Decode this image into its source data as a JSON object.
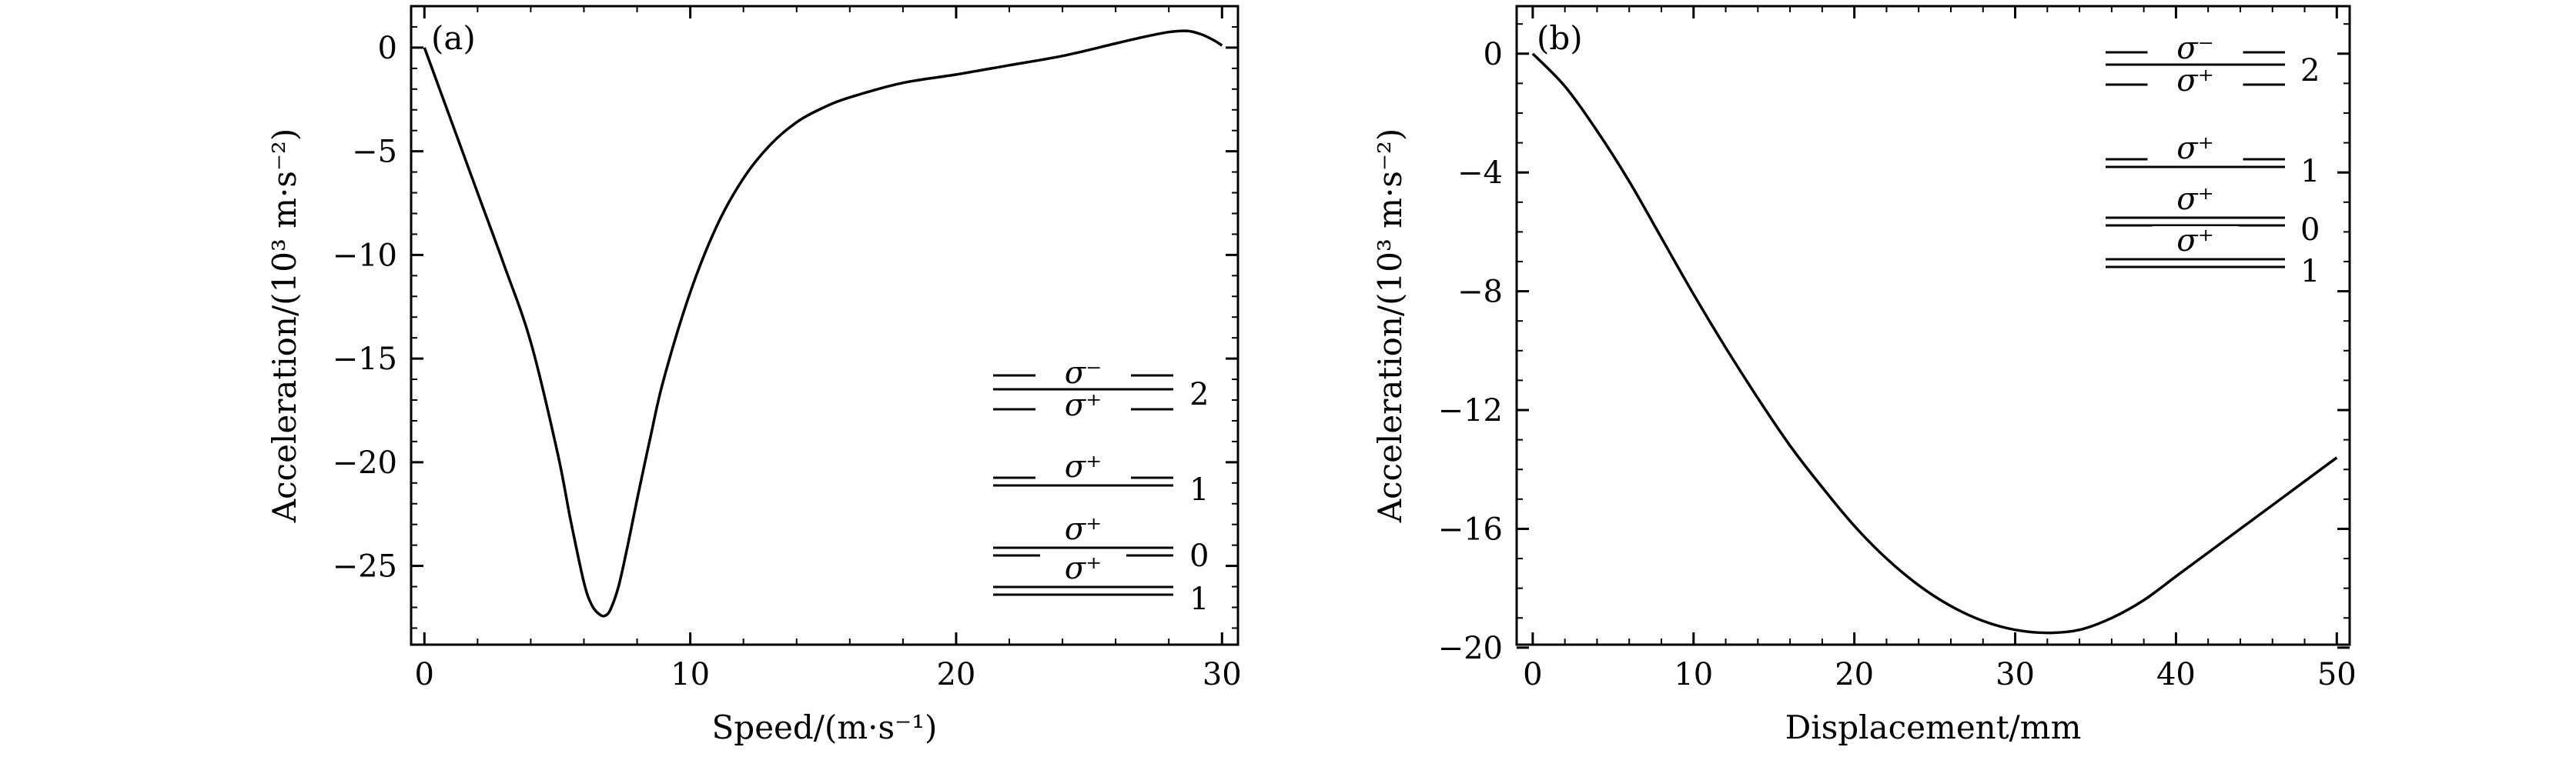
{
  "chart_data": [
    {
      "type": "line",
      "panel_label": "(a)",
      "xlabel": "Speed/(m·s⁻¹)",
      "ylabel": "Acceleration/(10³ m·s⁻²)",
      "xlim": [
        -0.5,
        30.6
      ],
      "ylim": [
        -28.8,
        2.0
      ],
      "x_ticks": [
        0,
        10,
        20,
        30
      ],
      "x_tick_labels": [
        "0",
        "10",
        "20",
        "30"
      ],
      "y_ticks": [
        0,
        -5,
        -10,
        -15,
        -20,
        -25
      ],
      "y_tick_labels": [
        "0",
        "−5",
        "−10",
        "−15",
        "−20",
        "−25"
      ],
      "grid": false,
      "legend_position": "lower-right",
      "series": [
        {
          "x": [
            0,
            1,
            2,
            3,
            4,
            5,
            5.5,
            6,
            6.3,
            6.6,
            6.8,
            7.0,
            7.3,
            7.6,
            8,
            8.5,
            9,
            10,
            11,
            12,
            13,
            14,
            15,
            16,
            18,
            20,
            22,
            24,
            26,
            27,
            28,
            28.7,
            29.2,
            29.7,
            30.0
          ],
          "y": [
            0,
            -3.5,
            -7.0,
            -10.5,
            -14.2,
            -19.5,
            -22.8,
            -25.8,
            -26.9,
            -27.35,
            -27.4,
            -27.1,
            -26.0,
            -24.3,
            -21.8,
            -18.8,
            -16.0,
            -11.8,
            -8.6,
            -6.3,
            -4.7,
            -3.6,
            -2.9,
            -2.4,
            -1.7,
            -1.3,
            -0.85,
            -0.4,
            0.2,
            0.5,
            0.75,
            0.8,
            0.65,
            0.35,
            0.1
          ]
        }
      ],
      "legend": [
        {
          "upper": "σ⁻",
          "lower": "σ⁺",
          "value": "2"
        },
        {
          "upper": "σ⁺",
          "lower": "",
          "value": "1"
        },
        {
          "upper": "σ⁺",
          "lower": "",
          "value": "0"
        },
        {
          "upper": "σ⁺",
          "lower": "",
          "value": "1"
        }
      ]
    },
    {
      "type": "line",
      "panel_label": "(b)",
      "xlabel": "Displacement/mm",
      "ylabel": "Acceleration/(10³ m·s⁻²)",
      "xlim": [
        -1.0,
        50.8
      ],
      "ylim": [
        -19.9,
        1.6
      ],
      "x_ticks": [
        0,
        10,
        20,
        30,
        40,
        50
      ],
      "x_tick_labels": [
        "0",
        "10",
        "20",
        "30",
        "40",
        "50"
      ],
      "y_ticks": [
        0,
        -4,
        -8,
        -12,
        -16,
        -20
      ],
      "y_tick_labels": [
        "0",
        "−4",
        "−8",
        "−12",
        "−16",
        "−20"
      ],
      "grid": false,
      "legend_position": "upper-right",
      "series": [
        {
          "x": [
            0,
            2,
            4,
            6,
            8,
            10,
            12,
            14,
            16,
            18,
            20,
            22,
            24,
            26,
            28,
            30,
            32,
            34,
            36,
            38,
            40,
            42,
            44,
            46,
            48,
            50
          ],
          "y": [
            0,
            -1.1,
            -2.6,
            -4.3,
            -6.2,
            -8.1,
            -9.9,
            -11.6,
            -13.2,
            -14.6,
            -15.9,
            -17.0,
            -17.9,
            -18.6,
            -19.1,
            -19.4,
            -19.5,
            -19.4,
            -19.0,
            -18.4,
            -17.6,
            -16.8,
            -16.0,
            -15.2,
            -14.4,
            -13.6
          ]
        }
      ],
      "legend": [
        {
          "upper": "σ⁻",
          "lower": "σ⁺",
          "value": "2"
        },
        {
          "upper": "σ⁺",
          "lower": "",
          "value": "1"
        },
        {
          "upper": "σ⁺",
          "lower": "",
          "value": "0"
        },
        {
          "upper": "σ⁺",
          "lower": "",
          "value": "1"
        }
      ]
    }
  ]
}
